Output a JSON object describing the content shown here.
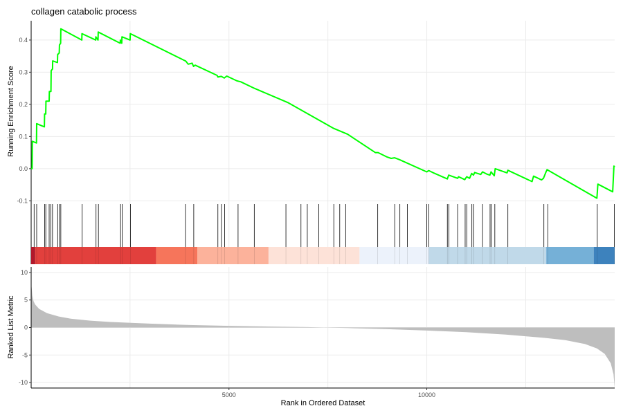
{
  "chart_data": {
    "type": "line",
    "title": "collagen catabolic process",
    "xlabel": "Rank in Ordered Dataset",
    "ylabel_top": "Running Enrichment Score",
    "ylabel_bottom": "Ranked List Metric",
    "xlim": [
      0,
      14750
    ],
    "x_ticks": [
      5000,
      10000
    ],
    "x_tick_labels": [
      "5000",
      "10000"
    ],
    "x_grid": [
      2500,
      5000,
      7500,
      10000,
      12500
    ],
    "grid": true,
    "es_ylim": [
      -0.11,
      0.46
    ],
    "es_ticks": [
      -0.1,
      0.0,
      0.1,
      0.2,
      0.3,
      0.4
    ],
    "es_tick_labels": [
      "-0.1",
      "0.0",
      "0.1",
      "0.2",
      "0.3",
      "0.4"
    ],
    "metric_ylim": [
      -11,
      11
    ],
    "metric_ticks": [
      -10,
      -5,
      0,
      5,
      10
    ],
    "metric_tick_labels": [
      "-10",
      "-5",
      "0",
      "5",
      "10"
    ],
    "line_color": "#00ff00",
    "series": [
      {
        "values": [
          [
            0,
            0.0
          ],
          [
            25,
            0.0
          ],
          [
            30,
            0.085
          ],
          [
            135,
            0.08
          ],
          [
            140,
            0.14
          ],
          [
            335,
            0.13
          ],
          [
            340,
            0.17
          ],
          [
            370,
            0.17
          ],
          [
            375,
            0.21
          ],
          [
            455,
            0.21
          ],
          [
            460,
            0.24
          ],
          [
            500,
            0.24
          ],
          [
            505,
            0.305
          ],
          [
            540,
            0.31
          ],
          [
            545,
            0.335
          ],
          [
            665,
            0.33
          ],
          [
            670,
            0.355
          ],
          [
            710,
            0.36
          ],
          [
            715,
            0.385
          ],
          [
            745,
            0.39
          ],
          [
            750,
            0.435
          ],
          [
            1280,
            0.4
          ],
          [
            1285,
            0.42
          ],
          [
            1630,
            0.4
          ],
          [
            1635,
            0.41
          ],
          [
            1690,
            0.4
          ],
          [
            1695,
            0.425
          ],
          [
            2250,
            0.39
          ],
          [
            2255,
            0.4
          ],
          [
            2290,
            0.39
          ],
          [
            2295,
            0.41
          ],
          [
            2500,
            0.4
          ],
          [
            2505,
            0.42
          ],
          [
            3900,
            0.335
          ],
          [
            3905,
            0.335
          ],
          [
            3970,
            0.325
          ],
          [
            4070,
            0.328
          ],
          [
            4105,
            0.318
          ],
          [
            4145,
            0.322
          ],
          [
            4700,
            0.29
          ],
          [
            4720,
            0.285
          ],
          [
            4805,
            0.287
          ],
          [
            4880,
            0.282
          ],
          [
            4945,
            0.288
          ],
          [
            5200,
            0.273
          ],
          [
            5300,
            0.27
          ],
          [
            5640,
            0.25
          ],
          [
            6500,
            0.205
          ],
          [
            7650,
            0.125
          ],
          [
            8000,
            0.107
          ],
          [
            8700,
            0.05
          ],
          [
            8770,
            0.05
          ],
          [
            9000,
            0.036
          ],
          [
            9100,
            0.032
          ],
          [
            9185,
            0.034
          ],
          [
            9310,
            0.028
          ],
          [
            10000,
            -0.01
          ],
          [
            10050,
            -0.006
          ],
          [
            10150,
            -0.012
          ],
          [
            10520,
            -0.032
          ],
          [
            10555,
            -0.02
          ],
          [
            10780,
            -0.03
          ],
          [
            10805,
            -0.025
          ],
          [
            10960,
            -0.034
          ],
          [
            11010,
            -0.025
          ],
          [
            11080,
            -0.03
          ],
          [
            11135,
            -0.015
          ],
          [
            11180,
            -0.02
          ],
          [
            11210,
            -0.012
          ],
          [
            11365,
            -0.018
          ],
          [
            11410,
            -0.01
          ],
          [
            11520,
            -0.017
          ],
          [
            11595,
            -0.02
          ],
          [
            11625,
            -0.01
          ],
          [
            11705,
            -0.022
          ],
          [
            11730,
            0.0
          ],
          [
            12030,
            -0.013
          ],
          [
            12050,
            -0.005
          ],
          [
            12660,
            -0.04
          ],
          [
            12700,
            -0.023
          ],
          [
            12900,
            -0.035
          ],
          [
            12950,
            -0.03
          ],
          [
            13015,
            -0.01
          ],
          [
            13040,
            -0.003
          ],
          [
            14300,
            -0.092
          ],
          [
            14325,
            -0.048
          ],
          [
            14700,
            -0.072
          ],
          [
            14730,
            0.008
          ],
          [
            14750,
            0.005
          ]
        ]
      }
    ],
    "gene_hits": [
      75,
      140,
      340,
      370,
      455,
      500,
      540,
      670,
      715,
      750,
      1290,
      1640,
      1700,
      2260,
      2300,
      2510,
      3900,
      4110,
      4720,
      4810,
      4890,
      5230,
      5640,
      6440,
      6820,
      6980,
      7270,
      7650,
      7800,
      7950,
      8760,
      9190,
      9320,
      9510,
      10000,
      10050,
      10520,
      10560,
      10780,
      10970,
      11010,
      11140,
      11190,
      11410,
      11600,
      11630,
      11720,
      12050,
      12960,
      13060,
      14310,
      14740
    ],
    "color_bands": [
      {
        "from": 0,
        "to": 100,
        "color": "#b2182b"
      },
      {
        "from": 100,
        "to": 3160,
        "color": "#e2403d"
      },
      {
        "from": 3160,
        "to": 4200,
        "color": "#f6755b"
      },
      {
        "from": 4200,
        "to": 6000,
        "color": "#fcb29b"
      },
      {
        "from": 6000,
        "to": 8300,
        "color": "#fde2d8"
      },
      {
        "from": 8300,
        "to": 10050,
        "color": "#ecf2fb"
      },
      {
        "from": 10050,
        "to": 13020,
        "color": "#c0d9e9"
      },
      {
        "from": 13020,
        "to": 14220,
        "color": "#75b0d7"
      },
      {
        "from": 14220,
        "to": 14750,
        "color": "#3d82bd"
      }
    ],
    "metric_curve": [
      [
        0,
        8.0
      ],
      [
        15,
        7.0
      ],
      [
        30,
        5.8
      ],
      [
        60,
        4.8
      ],
      [
        100,
        4.2
      ],
      [
        200,
        3.4
      ],
      [
        400,
        2.6
      ],
      [
        700,
        2.0
      ],
      [
        1000,
        1.6
      ],
      [
        1500,
        1.25
      ],
      [
        2000,
        1.0
      ],
      [
        3000,
        0.7
      ],
      [
        4000,
        0.45
      ],
      [
        5000,
        0.3
      ],
      [
        6000,
        0.18
      ],
      [
        7000,
        0.07
      ],
      [
        7400,
        0.0
      ],
      [
        8000,
        -0.1
      ],
      [
        9000,
        -0.3
      ],
      [
        10000,
        -0.55
      ],
      [
        11000,
        -0.85
      ],
      [
        12000,
        -1.3
      ],
      [
        13000,
        -1.9
      ],
      [
        13500,
        -2.3
      ],
      [
        14000,
        -3.0
      ],
      [
        14300,
        -3.8
      ],
      [
        14500,
        -4.8
      ],
      [
        14650,
        -6.5
      ],
      [
        14720,
        -8.5
      ],
      [
        14750,
        -11.0
      ]
    ],
    "metric_color": "#bebebe"
  }
}
